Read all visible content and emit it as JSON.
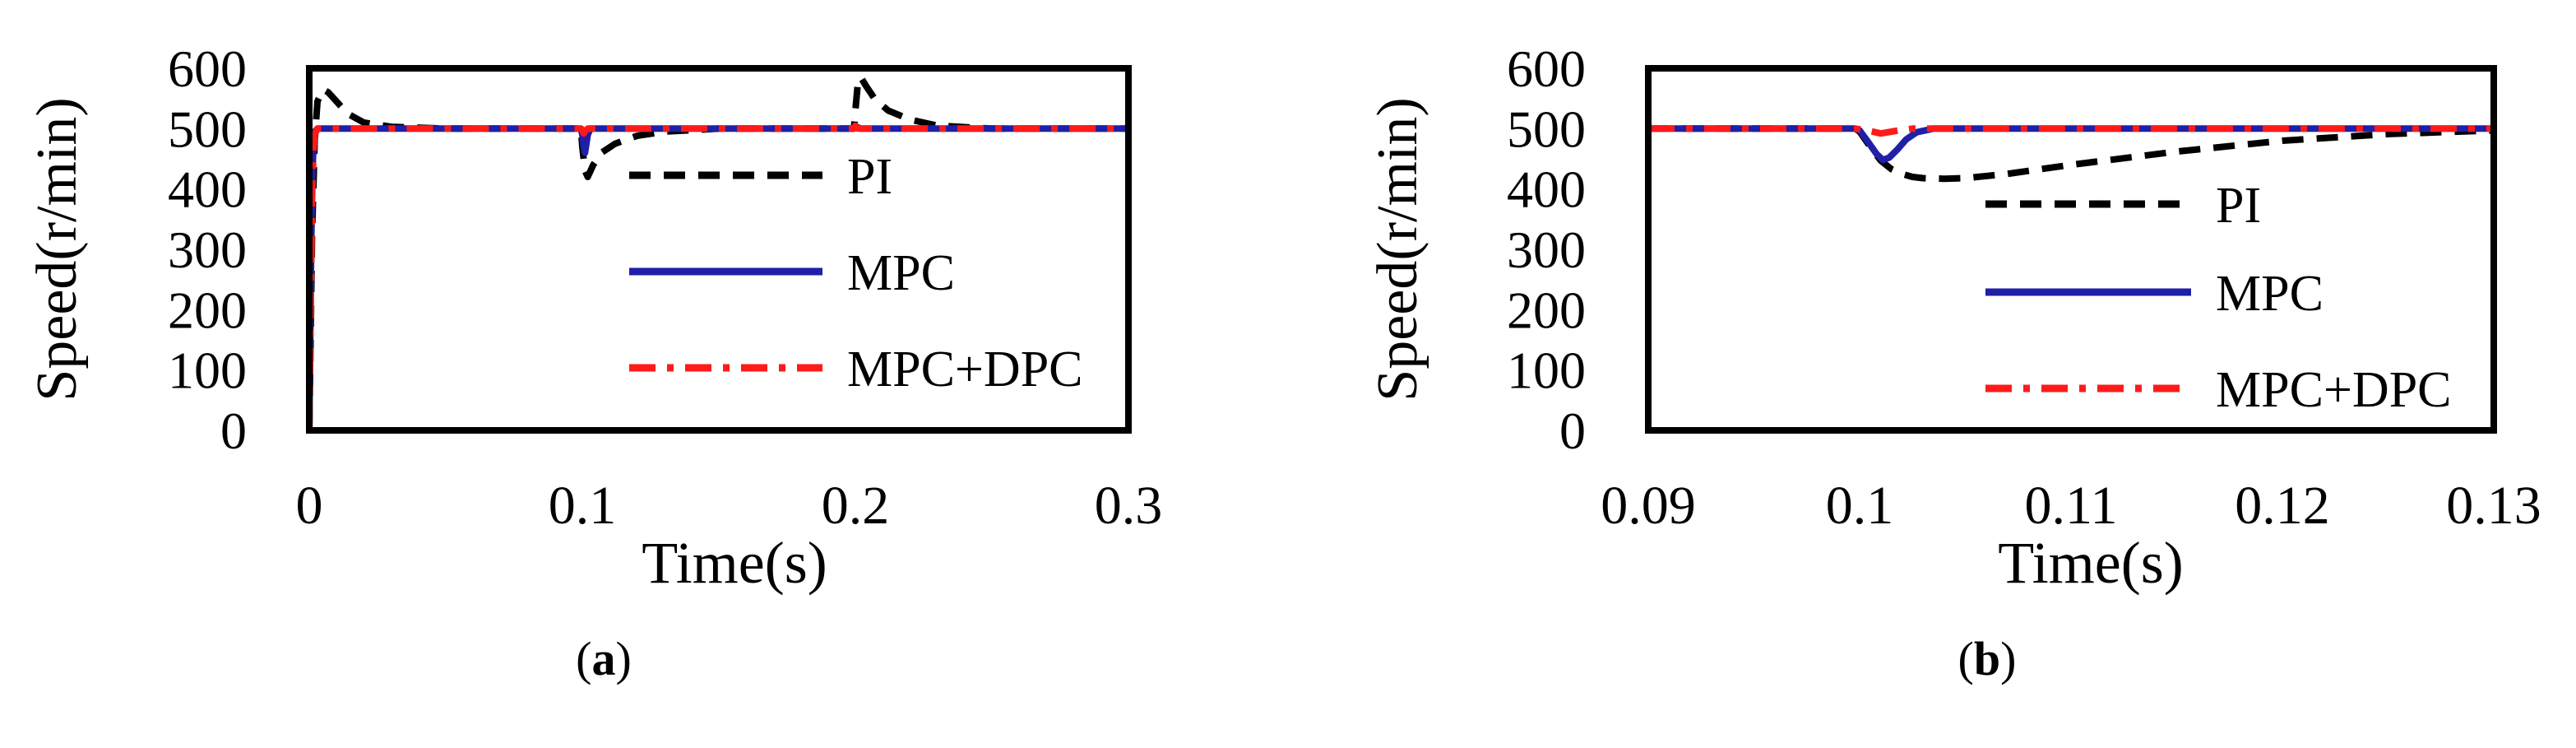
{
  "figure": {
    "panel_a_label": "a",
    "panel_b_label": "b"
  },
  "chart_data": [
    {
      "type": "line",
      "panel": "a",
      "title": "",
      "xlabel": "Time(s)",
      "ylabel": "Speed(r/min)",
      "xlim": [
        0,
        0.3
      ],
      "ylim": [
        0,
        600
      ],
      "xticks": [
        0,
        0.1,
        0.2,
        0.3
      ],
      "xtick_labels": [
        "0",
        "0.1",
        "0.2",
        "0.3"
      ],
      "yticks": [
        0,
        100,
        200,
        300,
        400,
        500,
        600
      ],
      "ytick_labels": [
        "0",
        "100",
        "200",
        "300",
        "400",
        "500",
        "600"
      ],
      "grid": false,
      "legend_position": "right",
      "series": [
        {
          "name": "PI",
          "color": "#000000",
          "dash": "dashed",
          "x": [
            0,
            0.0005,
            0.001,
            0.002,
            0.003,
            0.005,
            0.007,
            0.01,
            0.014,
            0.02,
            0.03,
            0.05,
            0.0995,
            0.1,
            0.101,
            0.102,
            0.104,
            0.107,
            0.112,
            0.12,
            0.13,
            0.15,
            0.1995,
            0.2,
            0.201,
            0.202,
            0.204,
            0.207,
            0.212,
            0.22,
            0.23,
            0.25,
            0.3
          ],
          "y": [
            0,
            150,
            320,
            480,
            545,
            565,
            560,
            545,
            525,
            510,
            503,
            500,
            500,
            470,
            430,
            420,
            440,
            460,
            475,
            488,
            495,
            500,
            500,
            530,
            580,
            585,
            570,
            550,
            530,
            515,
            505,
            500,
            500
          ]
        },
        {
          "name": "MPC",
          "color": "#1f1fa8",
          "dash": "solid",
          "x": [
            0,
            0.0003,
            0.0006,
            0.001,
            0.0015,
            0.002,
            0.003,
            0.005,
            0.0995,
            0.1,
            0.1005,
            0.101,
            0.1015,
            0.102,
            0.103,
            0.1995,
            0.2,
            0.201,
            0.202,
            0.3
          ],
          "y": [
            0,
            120,
            260,
            400,
            470,
            495,
            500,
            500,
            500,
            490,
            470,
            460,
            475,
            490,
            500,
            500,
            505,
            502,
            500,
            500
          ]
        },
        {
          "name": "MPC+DPC",
          "color": "#ff1a1a",
          "dash": "dashdot",
          "x": [
            0,
            0.0003,
            0.0006,
            0.001,
            0.0015,
            0.002,
            0.003,
            0.005,
            0.0995,
            0.1,
            0.1005,
            0.101,
            0.102,
            0.1995,
            0.2,
            0.201,
            0.3
          ],
          "y": [
            0,
            100,
            230,
            380,
            460,
            490,
            500,
            500,
            500,
            498,
            492,
            496,
            500,
            500,
            505,
            500,
            500
          ]
        }
      ]
    },
    {
      "type": "line",
      "panel": "b",
      "title": "",
      "xlabel": "Time(s)",
      "ylabel": "Speed(r/min)",
      "xlim": [
        0.09,
        0.13
      ],
      "ylim": [
        0,
        600
      ],
      "xticks": [
        0.09,
        0.1,
        0.11,
        0.12,
        0.13
      ],
      "xtick_labels": [
        "0.09",
        "0.1",
        "0.11",
        "0.12",
        "0.13"
      ],
      "yticks": [
        0,
        100,
        200,
        300,
        400,
        500,
        600
      ],
      "ytick_labels": [
        "0",
        "100",
        "200",
        "300",
        "400",
        "500",
        "600"
      ],
      "grid": false,
      "legend_position": "right",
      "series": [
        {
          "name": "PI",
          "color": "#000000",
          "dash": "dashed",
          "x": [
            0.09,
            0.0998,
            0.1,
            0.1005,
            0.101,
            0.1015,
            0.102,
            0.1025,
            0.103,
            0.104,
            0.105,
            0.107,
            0.11,
            0.115,
            0.12,
            0.125,
            0.13
          ],
          "y": [
            500,
            500,
            495,
            470,
            447,
            433,
            425,
            420,
            418,
            417,
            418,
            425,
            440,
            462,
            480,
            491,
            497
          ]
        },
        {
          "name": "MPC",
          "color": "#1f1fa8",
          "dash": "solid",
          "x": [
            0.09,
            0.0998,
            0.1,
            0.1004,
            0.1008,
            0.1011,
            0.1014,
            0.1018,
            0.1022,
            0.1027,
            0.1035,
            0.13
          ],
          "y": [
            500,
            500,
            497,
            478,
            458,
            448,
            452,
            466,
            482,
            494,
            500,
            500
          ]
        },
        {
          "name": "MPC+DPC",
          "color": "#ff1a1a",
          "dash": "dashdot",
          "x": [
            0.09,
            0.0998,
            0.1,
            0.1005,
            0.101,
            0.1015,
            0.102,
            0.1025,
            0.13
          ],
          "y": [
            500,
            500,
            499,
            496,
            492,
            495,
            498,
            500,
            500
          ]
        }
      ]
    }
  ]
}
